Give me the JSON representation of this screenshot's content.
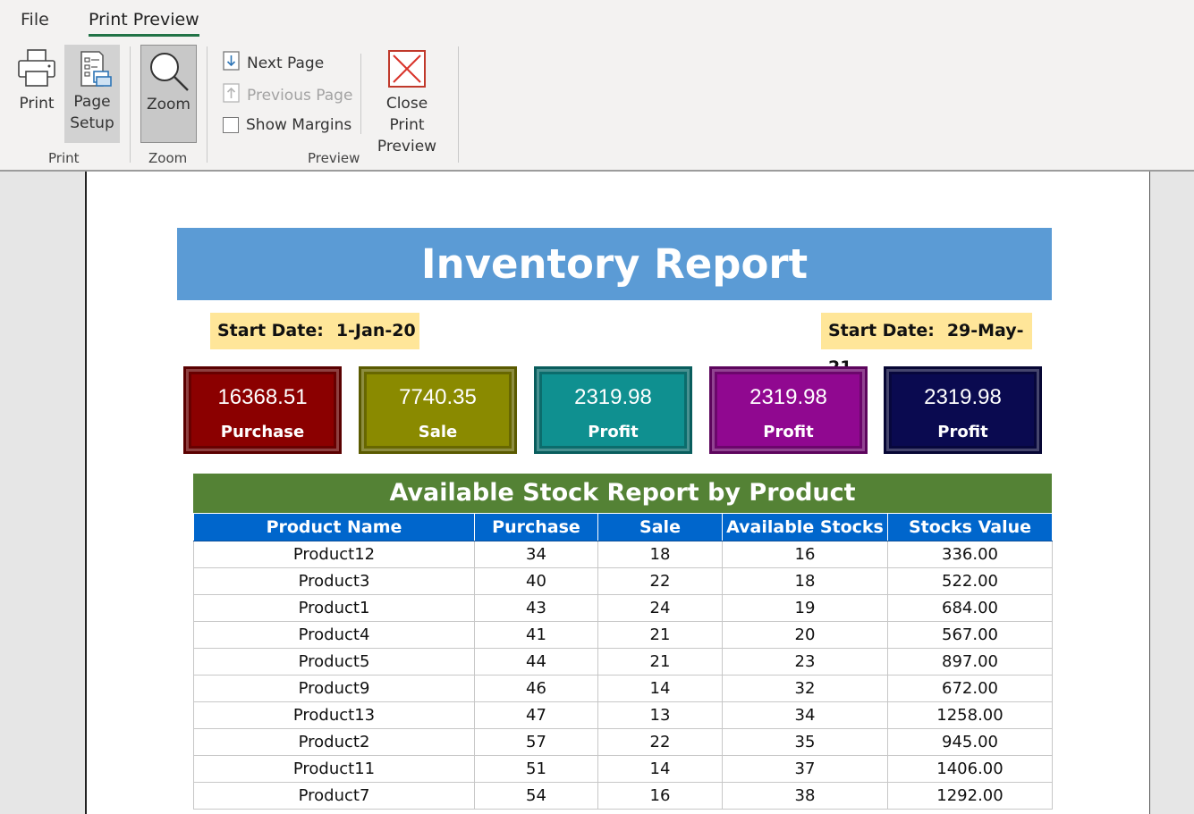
{
  "tabs": {
    "file": "File",
    "print_preview": "Print Preview"
  },
  "ribbon": {
    "print_group": {
      "label": "Print",
      "print_button": "Print",
      "page_setup_line1": "Page",
      "page_setup_line2": "Setup"
    },
    "zoom_group": {
      "label": "Zoom",
      "zoom_button": "Zoom"
    },
    "preview_group": {
      "label": "Preview",
      "next_page": "Next Page",
      "previous_page": "Previous Page",
      "show_margins": "Show Margins",
      "close_line1": "Close Print",
      "close_line2": "Preview"
    }
  },
  "report": {
    "title": "Inventory Report",
    "start_date": {
      "label": "Start Date:",
      "value": "1-Jan-20"
    },
    "end_date": {
      "label": "Start Date:",
      "value": "29-May-21"
    },
    "cards": [
      {
        "value": "16368.51",
        "caption": "Purchase",
        "color": "#8b0000"
      },
      {
        "value": "7740.35",
        "caption": "Sale",
        "color": "#8a8a00"
      },
      {
        "value": "2319.98",
        "caption": "Profit",
        "color": "#0f9090"
      },
      {
        "value": "2319.98",
        "caption": "Profit",
        "color": "#900890"
      },
      {
        "value": "2319.98",
        "caption": "Profit",
        "color": "#0a0a50"
      }
    ],
    "stock_table": {
      "title": "Available Stock Report by Product",
      "columns": [
        "Product Name",
        "Purchase",
        "Sale",
        "Available Stocks",
        "Stocks Value"
      ],
      "rows": [
        [
          "Product12",
          "34",
          "18",
          "16",
          "336.00"
        ],
        [
          "Product3",
          "40",
          "22",
          "18",
          "522.00"
        ],
        [
          "Product1",
          "43",
          "24",
          "19",
          "684.00"
        ],
        [
          "Product4",
          "41",
          "21",
          "20",
          "567.00"
        ],
        [
          "Product5",
          "44",
          "21",
          "23",
          "897.00"
        ],
        [
          "Product9",
          "46",
          "14",
          "32",
          "672.00"
        ],
        [
          "Product13",
          "47",
          "13",
          "34",
          "1258.00"
        ],
        [
          "Product2",
          "57",
          "22",
          "35",
          "945.00"
        ],
        [
          "Product11",
          "51",
          "14",
          "37",
          "1406.00"
        ],
        [
          "Product7",
          "54",
          "16",
          "38",
          "1292.00"
        ]
      ]
    }
  }
}
